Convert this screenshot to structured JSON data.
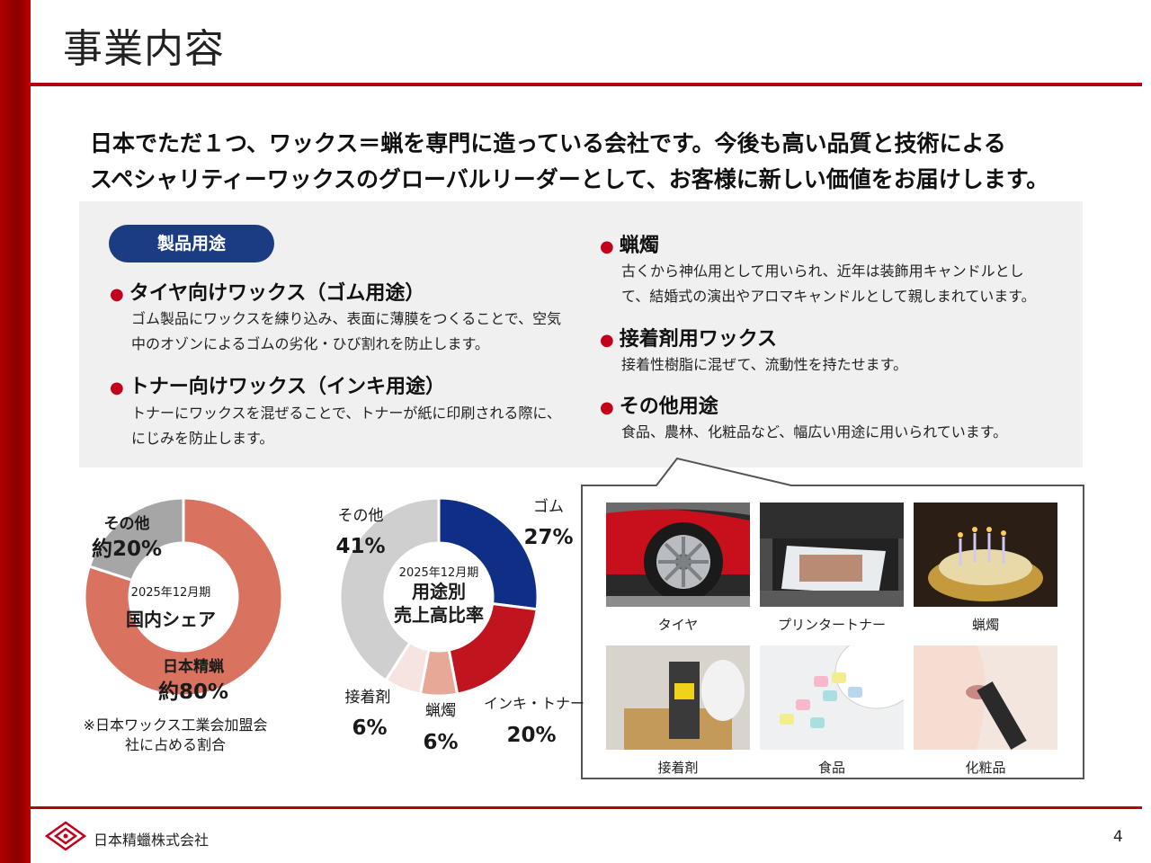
{
  "header": {
    "title": "事業内容"
  },
  "headline": {
    "line1": "日本でただ１つ、ワックス＝蝋を専門に造っている会社です。今後も高い品質と技術による",
    "line2": "スペシャリティーワックスのグローバルリーダーとして、お客様に新しい価値をお届けします。"
  },
  "uses": {
    "pill": "製品用途",
    "tire": {
      "title": "タイヤ向けワックス（ゴム用途）",
      "desc1": "ゴム製品にワックスを練り込み、表面に薄膜をつくることで、空気",
      "desc2": "中のオゾンによるゴムの劣化・ひび割れを防止します。"
    },
    "toner": {
      "title": "トナー向けワックス（インキ用途）",
      "desc1": "トナーにワックスを混ぜることで、トナーが紙に印刷される際に、",
      "desc2": "にじみを防止します。"
    },
    "candle": {
      "title": "蝋燭",
      "desc1": "古くから神仏用として用いられ、近年は装飾用キャンドルとし",
      "desc2": "て、結婚式の演出やアロマキャンドルとして親しまれています。"
    },
    "adhesive": {
      "title": "接着剤用ワックス",
      "desc1": "接着性樹脂に混ぜて、流動性を持たせます。"
    },
    "other": {
      "title": "その他用途",
      "desc1": "食品、農林、化粧品など、幅広い用途に用いられています。"
    }
  },
  "photos": [
    {
      "caption": "タイヤ",
      "icon": "tire-photo"
    },
    {
      "caption": "プリンタートナー",
      "icon": "printer-photo"
    },
    {
      "caption": "蝋燭",
      "icon": "candle-photo"
    },
    {
      "caption": "接着剤",
      "icon": "glue-gun-photo"
    },
    {
      "caption": "食品",
      "icon": "gum-photo"
    },
    {
      "caption": "化粧品",
      "icon": "lipstick-photo"
    }
  ],
  "chart_data": [
    {
      "type": "pie",
      "center_date": "2025年12月期",
      "center_title": "国内シェア",
      "categories": [
        "日本精蝋",
        "その他"
      ],
      "values": [
        80,
        20
      ],
      "value_labels": [
        "約80%",
        "約20%"
      ],
      "prefix": "約",
      "colors": [
        "#d9725f",
        "#a6a6a6"
      ],
      "note1": "※日本ワックス工業会加盟会",
      "note2": "社に占める割合"
    },
    {
      "type": "pie",
      "center_date": "2025年12月期",
      "center_title1": "用途別",
      "center_title2": "売上高比率",
      "categories": [
        "ゴム",
        "インキ・トナー",
        "蝋燭",
        "接着剤",
        "その他"
      ],
      "values": [
        27,
        20,
        6,
        6,
        41
      ],
      "value_labels": [
        "27%",
        "20%",
        "6%",
        "6%",
        "41%"
      ],
      "colors": [
        "#0f2f86",
        "#c0141e",
        "#e8a898",
        "#f5e4e0",
        "#cfcfcf"
      ]
    }
  ],
  "footer": {
    "company": "日本精蠟株式会社",
    "page": "4"
  }
}
